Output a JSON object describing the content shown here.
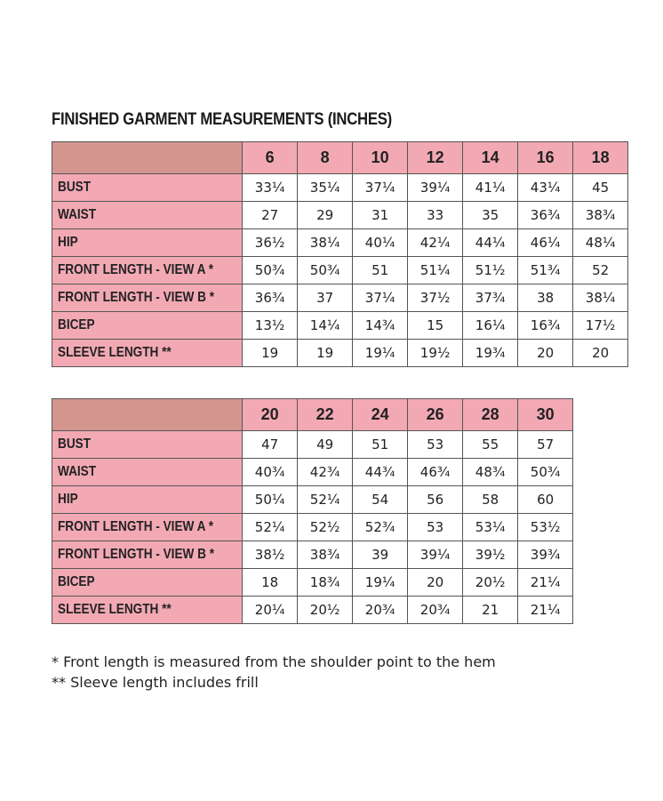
{
  "title": "FINISHED GARMENT MEASUREMENTS (INCHES)",
  "tables": [
    {
      "columns": [
        "6",
        "8",
        "10",
        "12",
        "14",
        "16",
        "18"
      ],
      "rows": [
        {
          "label": "BUST",
          "values": [
            "33¼",
            "35¼",
            "37¼",
            "39¼",
            "41¼",
            "43¼",
            "45"
          ]
        },
        {
          "label": "WAIST",
          "values": [
            "27",
            "29",
            "31",
            "33",
            "35",
            "36¾",
            "38¾"
          ]
        },
        {
          "label": "HIP",
          "values": [
            "36½",
            "38¼",
            "40¼",
            "42¼",
            "44¼",
            "46¼",
            "48¼"
          ]
        },
        {
          "label": "FRONT LENGTH - VIEW A *",
          "values": [
            "50¾",
            "50¾",
            "51",
            "51¼",
            "51½",
            "51¾",
            "52"
          ]
        },
        {
          "label": "FRONT LENGTH - VIEW B *",
          "values": [
            "36¾",
            "37",
            "37¼",
            "37½",
            "37¾",
            "38",
            "38¼"
          ]
        },
        {
          "label": "BICEP",
          "values": [
            "13½",
            "14¼",
            "14¾",
            "15",
            "16¼",
            "16¾",
            "17½"
          ]
        },
        {
          "label": "SLEEVE LENGTH **",
          "values": [
            "19",
            "19",
            "19¼",
            "19½",
            "19¾",
            "20",
            "20"
          ]
        }
      ]
    },
    {
      "columns": [
        "20",
        "22",
        "24",
        "26",
        "28",
        "30"
      ],
      "rows": [
        {
          "label": "BUST",
          "values": [
            "47",
            "49",
            "51",
            "53",
            "55",
            "57"
          ]
        },
        {
          "label": "WAIST",
          "values": [
            "40¾",
            "42¾",
            "44¾",
            "46¾",
            "48¾",
            "50¾"
          ]
        },
        {
          "label": "HIP",
          "values": [
            "50¼",
            "52¼",
            "54",
            "56",
            "58",
            "60"
          ]
        },
        {
          "label": "FRONT LENGTH - VIEW A *",
          "values": [
            "52¼",
            "52½",
            "52¾",
            "53",
            "53¼",
            "53½"
          ]
        },
        {
          "label": "FRONT LENGTH - VIEW B *",
          "values": [
            "38½",
            "38¾",
            "39",
            "39¼",
            "39½",
            "39¾"
          ]
        },
        {
          "label": "BICEP",
          "values": [
            "18",
            "18¾",
            "19¼",
            "20",
            "20½",
            "21¼"
          ]
        },
        {
          "label": "SLEEVE LENGTH **",
          "values": [
            "20¼",
            "20½",
            "20¾",
            "20¾",
            "21",
            "21¼"
          ]
        }
      ]
    }
  ],
  "footnotes": [
    "* Front length is measured from the shoulder point to the hem",
    "** Sleeve length includes frill"
  ]
}
